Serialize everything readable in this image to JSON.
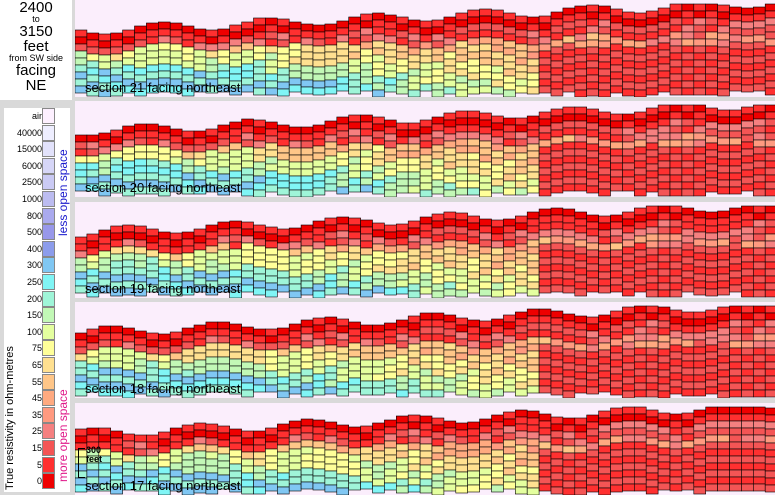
{
  "title": {
    "from": "2400",
    "to_word": "to",
    "to": "3150",
    "unit": "feet",
    "reference": "from SW side",
    "facing_word": "facing",
    "facing": "NE"
  },
  "legend": {
    "ylabel": "True resistivity in ohm-metres",
    "less_open": "less open space",
    "more_open": "more open space",
    "entries": [
      {
        "label": "air",
        "color": "#fdf0ff"
      },
      {
        "label": "40000",
        "color": "#eeeeff"
      },
      {
        "label": "15000",
        "color": "#e2e2fb"
      },
      {
        "label": "6000",
        "color": "#d6d6f7"
      },
      {
        "label": "2500",
        "color": "#cacaf4"
      },
      {
        "label": "1000",
        "color": "#bcbcf0"
      },
      {
        "label": "800",
        "color": "#aaaaee"
      },
      {
        "label": "500",
        "color": "#9898ea"
      },
      {
        "label": "400",
        "color": "#8c9ceb"
      },
      {
        "label": "300",
        "color": "#80c7f3"
      },
      {
        "label": "250",
        "color": "#80f5f5"
      },
      {
        "label": "200",
        "color": "#9ff5d8"
      },
      {
        "label": "150",
        "color": "#c2f8b6"
      },
      {
        "label": "100",
        "color": "#e4ff9f"
      },
      {
        "label": "75",
        "color": "#ffff99"
      },
      {
        "label": "65",
        "color": "#ffe090"
      },
      {
        "label": "55",
        "color": "#ffc688"
      },
      {
        "label": "45",
        "color": "#ffaa80"
      },
      {
        "label": "35",
        "color": "#ff9a80"
      },
      {
        "label": "25",
        "color": "#f58080"
      },
      {
        "label": "15",
        "color": "#f45555"
      },
      {
        "label": "5",
        "color": "#ff3030"
      },
      {
        "label": "0",
        "color": "#ee0000"
      }
    ]
  },
  "scalebar": {
    "label_top": "300",
    "label_bottom": "feet"
  },
  "sections": [
    {
      "label": "section 21 facing northeast"
    },
    {
      "label": "section 20 facing northeast"
    },
    {
      "label": "section 19 facing northeast"
    },
    {
      "label": "section 18 facing northeast"
    },
    {
      "label": "section 17 facing northeast"
    }
  ]
}
